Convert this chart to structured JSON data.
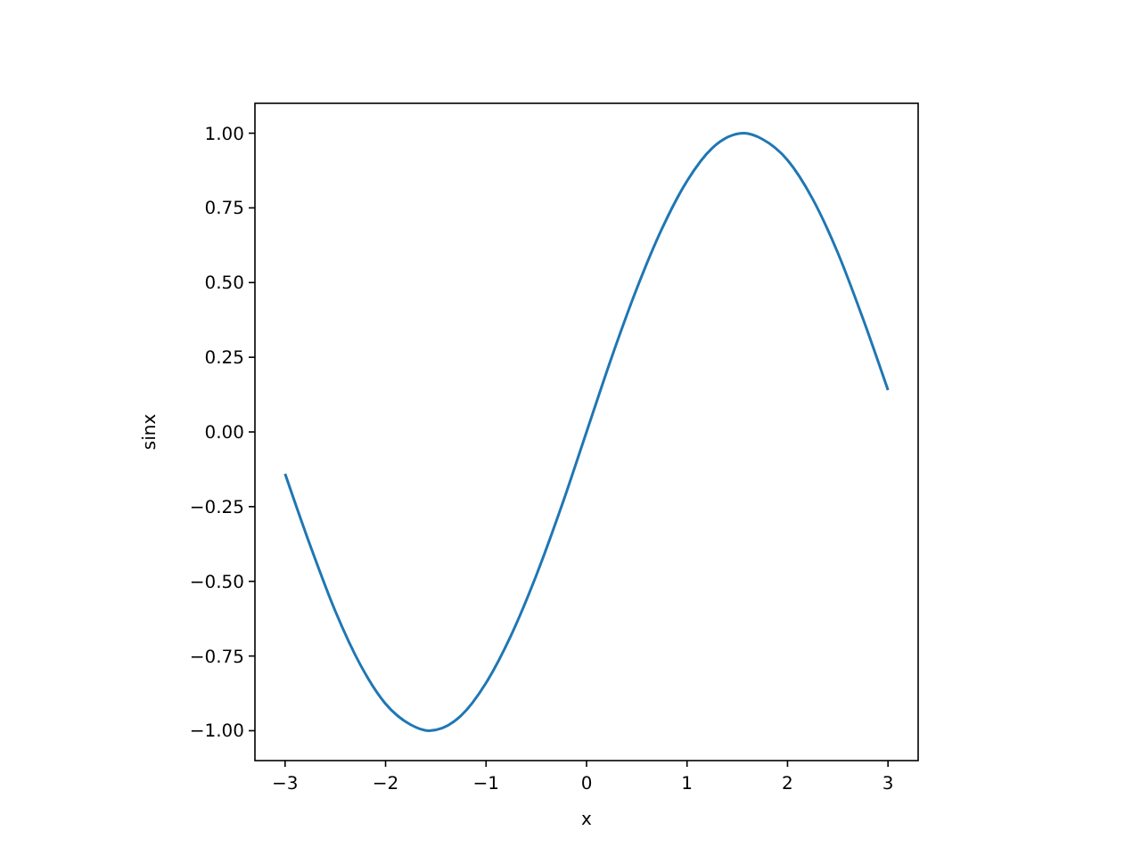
{
  "chart_data": {
    "type": "line",
    "xlabel": "x",
    "ylabel": "sinx",
    "xlim": [
      -3.3,
      3.3
    ],
    "ylim": [
      -1.1,
      1.1
    ],
    "xticks": [
      {
        "value": -3,
        "label": "−3"
      },
      {
        "value": -2,
        "label": "−2"
      },
      {
        "value": -1,
        "label": "−1"
      },
      0,
      1,
      2,
      3
    ],
    "yticks": [
      {
        "value": -1,
        "label": "−1.00"
      },
      {
        "value": -0.75,
        "label": "−0.75"
      },
      {
        "value": -0.5,
        "label": "−0.50"
      },
      {
        "value": -0.25,
        "label": "−0.25"
      },
      {
        "value": 0,
        "label": "0.00"
      },
      {
        "value": 0.25,
        "label": "0.25"
      },
      {
        "value": 0.5,
        "label": "0.50"
      },
      {
        "value": 0.75,
        "label": "0.75"
      },
      {
        "value": 1,
        "label": "1.00"
      }
    ],
    "grid": false,
    "line_style": "solid",
    "marker": "none",
    "x": [
      -3,
      -2.75,
      -2.5,
      -2.25,
      -2,
      -1.75,
      -1.57,
      -1.25,
      -1,
      -0.75,
      -0.5,
      -0.25,
      0,
      0.25,
      0.5,
      0.75,
      1,
      1.25,
      1.57,
      1.75,
      2,
      2.25,
      2.5,
      2.75,
      3
    ],
    "series": [
      {
        "color": "#1f77b4",
        "values": [
          -0.14,
          -0.38,
          -0.6,
          -0.78,
          -0.91,
          -0.98,
          -1,
          -0.95,
          -0.84,
          -0.68,
          -0.48,
          -0.25,
          0,
          0.25,
          0.48,
          0.68,
          0.84,
          0.95,
          1,
          0.98,
          0.91,
          0.78,
          0.6,
          0.38,
          0.14
        ]
      }
    ]
  }
}
